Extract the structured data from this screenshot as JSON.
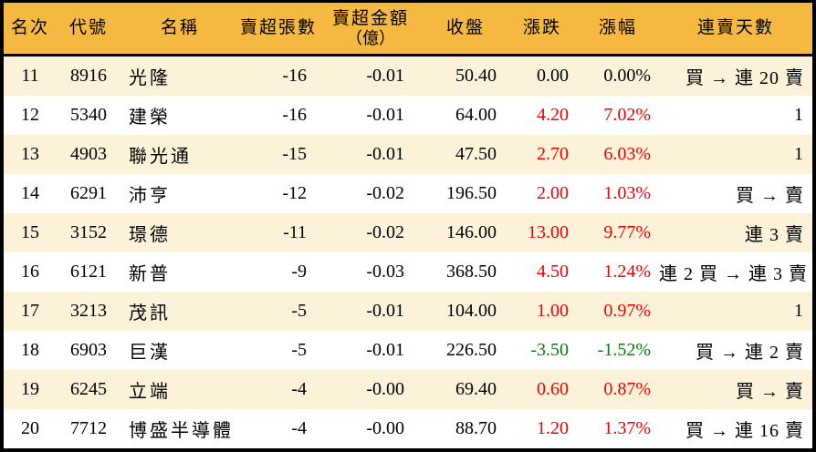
{
  "chart_data": {
    "type": "table",
    "description": "股票賣超排行表 名次11至20",
    "columns": [
      {
        "key": "rank",
        "label": "名次"
      },
      {
        "key": "code",
        "label": "代號"
      },
      {
        "key": "name",
        "label": "名稱"
      },
      {
        "key": "sold_lots",
        "label": "賣超張數"
      },
      {
        "key": "sold_amount",
        "label": "賣超金額",
        "sublabel": "（億）"
      },
      {
        "key": "close",
        "label": "收盤"
      },
      {
        "key": "change",
        "label": "漲跌"
      },
      {
        "key": "change_pct",
        "label": "漲幅"
      },
      {
        "key": "streak",
        "label": "連賣天數"
      }
    ],
    "rows": [
      {
        "rank": "11",
        "code": "8916",
        "name": "光隆",
        "sold_lots": "-16",
        "sold_amount": "-0.01",
        "close": "50.40",
        "change": "0.00",
        "change_pct": "0.00%",
        "trend": "flat",
        "streak": "買 → 連 20 賣"
      },
      {
        "rank": "12",
        "code": "5340",
        "name": "建榮",
        "sold_lots": "-16",
        "sold_amount": "-0.01",
        "close": "64.00",
        "change": "4.20",
        "change_pct": "7.02%",
        "trend": "up",
        "streak": "1"
      },
      {
        "rank": "13",
        "code": "4903",
        "name": "聯光通",
        "sold_lots": "-15",
        "sold_amount": "-0.01",
        "close": "47.50",
        "change": "2.70",
        "change_pct": "6.03%",
        "trend": "up",
        "streak": "1"
      },
      {
        "rank": "14",
        "code": "6291",
        "name": "沛亨",
        "sold_lots": "-12",
        "sold_amount": "-0.02",
        "close": "196.50",
        "change": "2.00",
        "change_pct": "1.03%",
        "trend": "up",
        "streak": "買 → 賣"
      },
      {
        "rank": "15",
        "code": "3152",
        "name": "璟德",
        "sold_lots": "-11",
        "sold_amount": "-0.02",
        "close": "146.00",
        "change": "13.00",
        "change_pct": "9.77%",
        "trend": "up",
        "streak": "連 3 賣"
      },
      {
        "rank": "16",
        "code": "6121",
        "name": "新普",
        "sold_lots": "-9",
        "sold_amount": "-0.03",
        "close": "368.50",
        "change": "4.50",
        "change_pct": "1.24%",
        "trend": "up",
        "streak": "連 2 買 → 連 3 賣"
      },
      {
        "rank": "17",
        "code": "3213",
        "name": "茂訊",
        "sold_lots": "-5",
        "sold_amount": "-0.01",
        "close": "104.00",
        "change": "1.00",
        "change_pct": "0.97%",
        "trend": "up",
        "streak": "1"
      },
      {
        "rank": "18",
        "code": "6903",
        "name": "巨漢",
        "sold_lots": "-5",
        "sold_amount": "-0.01",
        "close": "226.50",
        "change": "-3.50",
        "change_pct": "-1.52%",
        "trend": "down",
        "streak": "買 → 連 2 賣"
      },
      {
        "rank": "19",
        "code": "6245",
        "name": "立端",
        "sold_lots": "-4",
        "sold_amount": "-0.00",
        "close": "69.40",
        "change": "0.60",
        "change_pct": "0.87%",
        "trend": "up",
        "streak": "買 → 賣"
      },
      {
        "rank": "20",
        "code": "7712",
        "name": "博盛半導體",
        "sold_lots": "-4",
        "sold_amount": "-0.00",
        "close": "88.70",
        "change": "1.20",
        "change_pct": "1.37%",
        "trend": "up",
        "streak": "買 → 連 16 賣"
      }
    ]
  },
  "colors": {
    "header_bg": "#F5B841",
    "stripe_bg": "#FBF2D9",
    "plain_bg": "#FFFFFF",
    "up_red": "#EE0000",
    "down_green": "#008000",
    "neutral": "#000000",
    "border": "#000000"
  }
}
